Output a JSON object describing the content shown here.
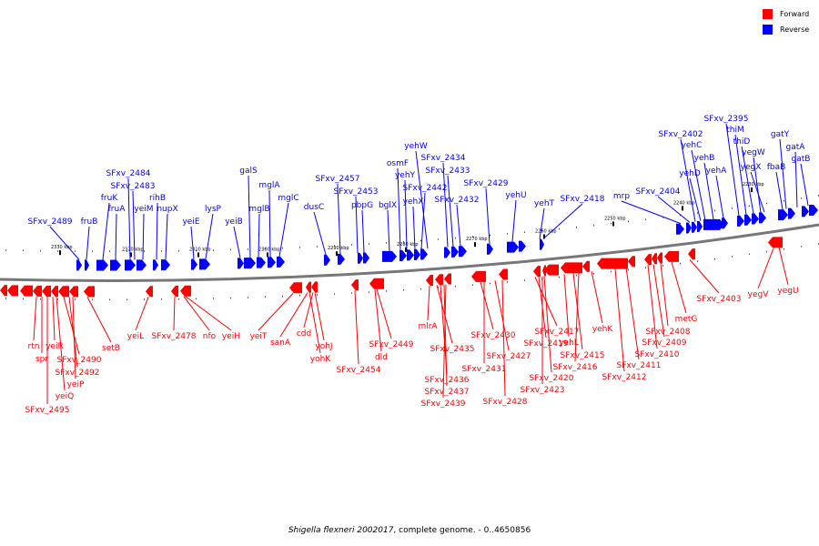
{
  "legend": [
    {
      "label": "Forward",
      "color": "#ff0000"
    },
    {
      "label": "Reverse",
      "color": "#0000ff"
    }
  ],
  "caption": {
    "organism": "Shigella flexneri 2002017",
    "rest": ", complete genome. - 0..4650856"
  },
  "colors": {
    "forward": "#ff0000",
    "reverse": "#0000ff",
    "backbone": "#777777"
  },
  "tick_labels": [
    "2330 kbp",
    "2320 kbp",
    "2310 kbp",
    "2300 kbp",
    "2290 kbp",
    "2280 kbp",
    "2270 kbp",
    "2260 kbp",
    "2250 kbp",
    "2240 kbp",
    "2230 kbp"
  ],
  "reverse_genes": [
    "SFxv_2489",
    "fruB",
    "fruK",
    "fruA",
    "SFxv_2484",
    "SFxv_2483",
    "yeiM",
    "rihB",
    "nupX",
    "yeiE",
    "lysP",
    "yeiB",
    "galS",
    "mglB",
    "mglA",
    "mglC",
    "dusC",
    "SFxv_2457",
    "SFxv_2453",
    "pbpG",
    "bglX",
    "osmF",
    "yehY",
    "yehX",
    "SFxv_2442",
    "yehW",
    "SFxv_2434",
    "SFxv_2433",
    "SFxv_2432",
    "SFxv_2429",
    "yehU",
    "yehT",
    "SFxv_2418",
    "mrp",
    "SFxv_2404",
    "SFxv_2402",
    "yehD",
    "yehC",
    "yehB",
    "yehA",
    "SFxv_2395",
    "thiM",
    "thiD",
    "yegW",
    "yegX",
    "fbaB",
    "gatY",
    "gatA",
    "gatB"
  ],
  "forward_genes": [
    "rtn",
    "spr",
    "yeiR",
    "SFxv_2490",
    "SFxv_2492",
    "yeiP",
    "yeiQ",
    "SFxv_2495",
    "setB",
    "yeiL",
    "SFxv_2478",
    "nfo",
    "yeiH",
    "yeiT",
    "sanA",
    "cdd",
    "yohJ",
    "yohK",
    "SFxv_2454",
    "dld",
    "SFxv_2449",
    "mlrA",
    "SFxv_2435",
    "SFxv_2436",
    "SFxv_2437",
    "SFxv_2439",
    "SFxv_2430",
    "SFxv_2431",
    "SFxv_2427",
    "SFxv_2428",
    "SFxv_2417",
    "SFxv_2419",
    "SFxv_2420",
    "SFxv_2423",
    "yehL",
    "SFxv_2415",
    "SFxv_2416",
    "yehK",
    "SFxv_2411",
    "SFxv_2412",
    "SFxv_2410",
    "SFxv_2409",
    "SFxv_2408",
    "metG",
    "SFxv_2403",
    "yegV",
    "yegU"
  ]
}
